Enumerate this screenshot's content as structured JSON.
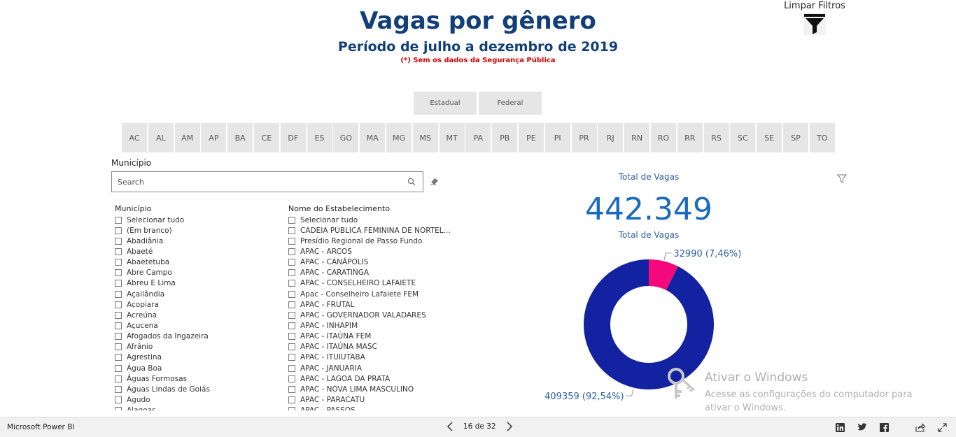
{
  "header": {
    "title": "Vagas por gênero",
    "subtitle": "Período de julho a dezembro de 2019",
    "note": "(*) Sem os dados da Segurança Pública",
    "clear_filters_label": "Limpar Filtros"
  },
  "scope_buttons": [
    "Estadual",
    "Federal"
  ],
  "states": [
    "AC",
    "AL",
    "AM",
    "AP",
    "BA",
    "CE",
    "DF",
    "ES",
    "GO",
    "MA",
    "MG",
    "MS",
    "MT",
    "PA",
    "PB",
    "PE",
    "PI",
    "PR",
    "RJ",
    "RN",
    "RO",
    "RR",
    "RS",
    "SC",
    "SE",
    "SP",
    "TO"
  ],
  "municipio_filter": {
    "label": "Município",
    "search_placeholder": "Search"
  },
  "municipio_list": {
    "header": "Município",
    "items": [
      "Selecionar tudo",
      "(Em branco)",
      "Abadiânia",
      "Abaeté",
      "Abaetetuba",
      "Abre Campo",
      "Abreu E Lima",
      "Açailândia",
      "Acopiara",
      "Acreúna",
      "Açucena",
      "Afogados da Ingazeira",
      "Afrânio",
      "Agrestina",
      "Água Boa",
      "Águas Formosas",
      "Águas Lindas de Goiás",
      "Agudo",
      "Alagoas"
    ]
  },
  "estabelecimento_list": {
    "header": "Nome do Estabelecimento",
    "items": [
      "Selecionar tudo",
      " CADEIA PÚBLICA FEMININA DE NORTEL...",
      " Presídio Regional de Passo Fundo",
      "APAC - ARCOS",
      "APAC - CANÁPOLIS",
      "APAC - CARATINGA",
      "APAC - CONSELHEIRO LAFAIETE",
      "Apac - Conselheiro Lafaiete FEM",
      "APAC - FRUTAL",
      "APAC - GOVERNADOR VALADARES",
      "APAC - INHAPIM",
      "APAC - ITAÚNA FEM",
      "APAC - ITAÚNA MASC",
      "APAC - ITUIUTABA",
      "APAC - JANUARIA",
      "APAC - LAGOA DA PRATA",
      "APAC - NOVA LIMA MASCULINO",
      "APAC - PARACATU",
      "APAC - PASSOS"
    ]
  },
  "kpi": {
    "label_top": "Total de Vagas",
    "value": "442.349",
    "label_bottom": "Total de Vagas"
  },
  "chart_data": {
    "type": "pie",
    "variant": "donut",
    "slices": [
      {
        "value": 32990,
        "percent": 7.46,
        "label": "32990 (7,46%)",
        "color": "#f5087c"
      },
      {
        "value": 409359,
        "percent": 92.54,
        "label": "409359 (92,54%)",
        "color": "#1322a0"
      }
    ]
  },
  "watermark": {
    "title": "Ativar o Windows",
    "text": "Acesse as configurações do computador para ativar o Windows."
  },
  "footer": {
    "brand": "Microsoft Power BI",
    "page_indicator": "16 de 32",
    "icons": [
      "linkedin-icon",
      "twitter-icon",
      "facebook-icon",
      "share-icon",
      "fullscreen-icon"
    ]
  },
  "colors": {
    "title": "#123f7a",
    "note": "#d40000",
    "kpi": "#1a6abf",
    "tile": "#e6e6e6"
  }
}
